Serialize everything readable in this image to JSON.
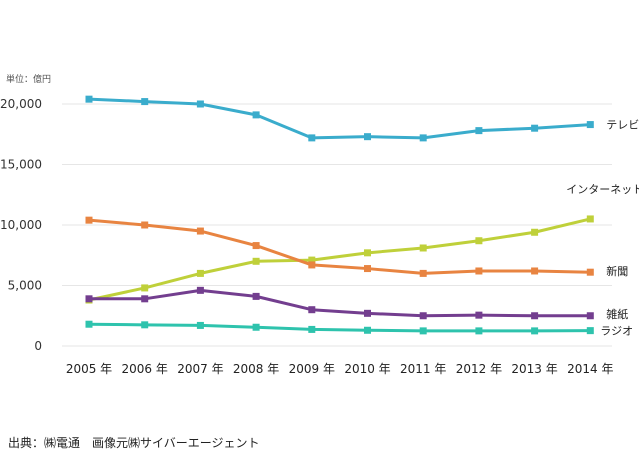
{
  "unit_label": "単位：億円",
  "source": "出典：㈱電通　画像元㈱サイバーエージェント",
  "chart_data": {
    "type": "line",
    "title": "",
    "xlabel": "",
    "ylabel": "",
    "unit": "単位：億円",
    "ylim": [
      0,
      20000
    ],
    "yticks": [
      0,
      5000,
      10000,
      15000,
      20000
    ],
    "ytick_labels": [
      "0",
      "5,000",
      "10,000",
      "15,000",
      "20,000"
    ],
    "categories": [
      "2005 年",
      "2006 年",
      "2007 年",
      "2008 年",
      "2009 年",
      "2010 年",
      "2011 年",
      "2012 年",
      "2013 年",
      "2014 年"
    ],
    "series": [
      {
        "name": "テレビ",
        "color": "#3aaccc",
        "values": [
          20400,
          20200,
          20000,
          19100,
          17200,
          17300,
          17200,
          17800,
          18000,
          18300
        ]
      },
      {
        "name": "インターネット",
        "color": "#bfd03a",
        "values": [
          3800,
          4800,
          6000,
          7000,
          7100,
          7700,
          8100,
          8700,
          9400,
          10500
        ]
      },
      {
        "name": "新聞",
        "color": "#e88441",
        "values": [
          10400,
          10000,
          9500,
          8300,
          6700,
          6400,
          6000,
          6200,
          6200,
          6100
        ]
      },
      {
        "name": "雑紙",
        "color": "#733e8f",
        "values": [
          3900,
          3900,
          4600,
          4100,
          3000,
          2700,
          2500,
          2550,
          2500,
          2500
        ]
      },
      {
        "name": "ラジオ",
        "color": "#2ec3ad",
        "values": [
          1800,
          1750,
          1700,
          1550,
          1370,
          1300,
          1250,
          1250,
          1250,
          1270
        ]
      }
    ]
  }
}
